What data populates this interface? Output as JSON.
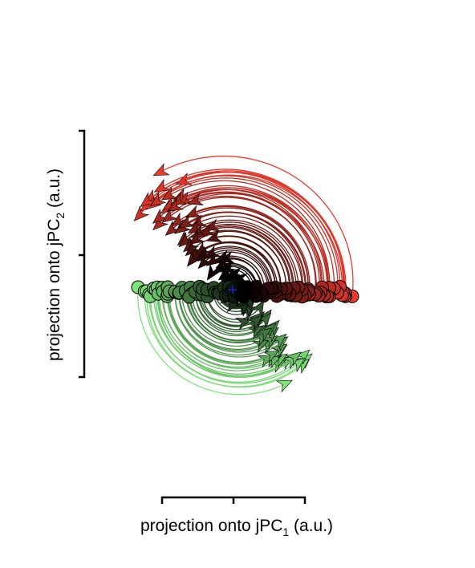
{
  "chart_data": {
    "type": "line",
    "subtype": "rotational-trajectories",
    "xlabel_text": "projection onto jPC",
    "xlabel_sub": "1",
    "xlabel_unit": "(a.u.)",
    "ylabel_text": "projection onto jPC",
    "ylabel_sub": "2",
    "ylabel_unit": "(a.u.)",
    "grid": false,
    "legend": "none",
    "origin_marker": {
      "symbol": "+",
      "color": "#1f1fe0",
      "x": 0,
      "y": 0
    },
    "xlim": [
      -1.35,
      1.75
    ],
    "ylim": [
      -1.55,
      1.55
    ],
    "xaxis_ticks": [
      -1,
      0,
      1
    ],
    "yaxis_ticks": [
      -1,
      0,
      1
    ],
    "color_start": "#7ee57a",
    "color_mid": "#000000",
    "color_end": "#ee3a2e",
    "conditions": 108,
    "trajectory_shape": "counter-clockwise arc from a start point near the jPC1 axis, ending in an arrowhead",
    "start_x_range": [
      -1.15,
      1.45
    ],
    "start_y_range": [
      -0.08,
      0.05
    ]
  }
}
